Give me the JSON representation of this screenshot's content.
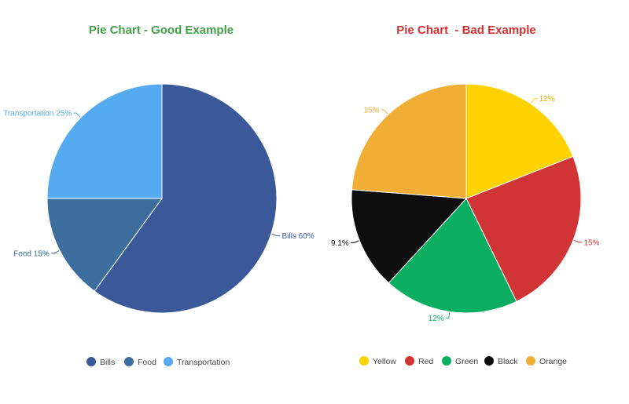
{
  "chart_data": [
    {
      "type": "pie",
      "title": "Pie Chart - Good Example",
      "title_color": "#43a047",
      "legend_position": "bottom",
      "slices": [
        {
          "name": "Bills",
          "value": 60,
          "label": "Bills 60%",
          "color": "#3b5998"
        },
        {
          "name": "Food",
          "value": 15,
          "label": "Food 15%",
          "color": "#3e6e9e"
        },
        {
          "name": "Transportation",
          "value": 25,
          "label": "Transportation 25%",
          "color": "#56aaf0"
        }
      ]
    },
    {
      "type": "pie",
      "title": "Pie Chart  - Bad Example",
      "title_color": "#d32f2f",
      "legend_position": "bottom",
      "slices": [
        {
          "name": "Yellow",
          "value": 12,
          "label": "12%",
          "color": "#ffd200"
        },
        {
          "name": "Red",
          "value": 15,
          "label": "15%",
          "color": "#d03434"
        },
        {
          "name": "Green",
          "value": 12,
          "label": "12%",
          "color": "#0caf61"
        },
        {
          "name": "Black",
          "value": 9.1,
          "label": "9.1%",
          "color": "#0e0e0e"
        },
        {
          "name": "Orange",
          "value": 15,
          "label": "15%",
          "color": "#f0ae36"
        }
      ]
    }
  ]
}
